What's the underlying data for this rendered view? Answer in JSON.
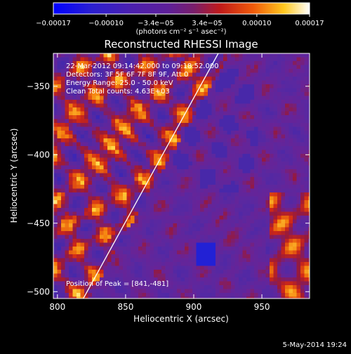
{
  "chart_data": {
    "type": "heatmap",
    "title": "Reconstructed RHESSI Image",
    "xlabel": "Heliocentric X (arcsec)",
    "ylabel": "Heliocentric Y (arcsec)",
    "xlim": [
      797,
      985
    ],
    "ylim": [
      -505,
      -326
    ],
    "x_ticks": [
      800,
      850,
      900,
      950
    ],
    "x_tick_labels": [
      "800",
      "850",
      "900",
      "950"
    ],
    "y_ticks": [
      -350,
      -400,
      -450,
      -500
    ],
    "y_tick_labels": [
      "−350",
      "−400",
      "−450",
      "−500"
    ],
    "colorbar": {
      "range": [
        -0.00017,
        0.00017
      ],
      "ticks": [
        -0.00017,
        -0.0001,
        -3.4e-05,
        3.4e-05,
        0.0001,
        0.00017
      ],
      "tick_labels": [
        "−0.00017",
        "−0.00010",
        "−3.4e−05",
        "3.4e−05",
        "0.00010",
        "0.00017"
      ],
      "units_label": "(photons cm⁻² s⁻¹ asec⁻²)",
      "colormap": "blue-purple-red-yellow-white"
    },
    "annotations": [
      "22-Mar-2012 09:14:42.000 to 09:18:52.000",
      "Detectors: 3F 5F 6F 7F 8F 9F, Att 0",
      "Energy Range: 25.0 - 50.0 keV",
      "Clean    Total counts: 4.63E+03"
    ],
    "peak_label": "Position of Peak = [841,-481]",
    "peak_position": [
      841,
      -481
    ],
    "limb_line": [
      [
        819,
        -505
      ],
      [
        918,
        -326
      ]
    ],
    "footer_date": "5-May-2014 19:24"
  },
  "colors": {
    "background": "#000000",
    "text": "#ffffff",
    "colormap_stops": [
      "#0000ff",
      "#3a14b4",
      "#5a2aa8",
      "#6a1f9a",
      "#c81e1e",
      "#f05a0a",
      "#ffc81e",
      "#ffffff"
    ]
  }
}
